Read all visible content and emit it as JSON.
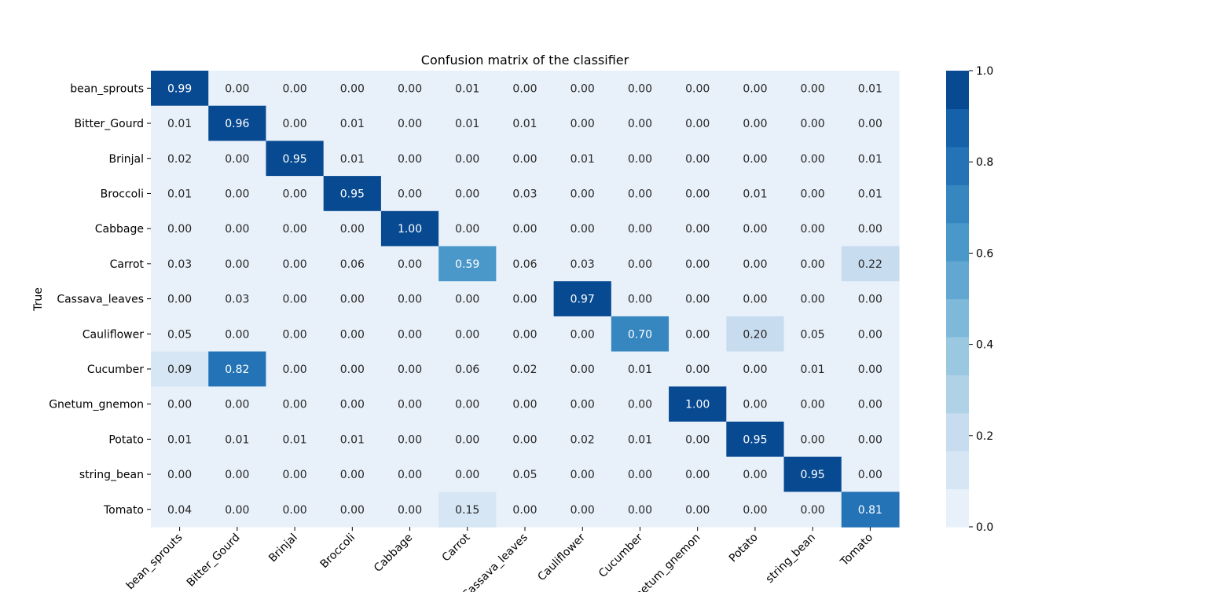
{
  "chart_data": {
    "type": "heatmap",
    "title": "Confusion matrix of the classifier",
    "xlabel": "",
    "ylabel": "True",
    "x_categories": [
      "bean_sprouts",
      "Bitter_Gourd",
      "Brinjal",
      "Broccoli",
      "Cabbage",
      "Carrot",
      "Cassava_leaves",
      "Cauliflower",
      "Cucumber",
      "Gnetum_gnemon",
      "Potato",
      "string_bean",
      "Tomato"
    ],
    "y_categories": [
      "bean_sprouts",
      "Bitter_Gourd",
      "Brinjal",
      "Broccoli",
      "Cabbage",
      "Carrot",
      "Cassava_leaves",
      "Cauliflower",
      "Cucumber",
      "Gnetum_gnemon",
      "Potato",
      "string_bean",
      "Tomato"
    ],
    "values": [
      [
        0.99,
        0.0,
        0.0,
        0.0,
        0.0,
        0.01,
        0.0,
        0.0,
        0.0,
        0.0,
        0.0,
        0.0,
        0.01
      ],
      [
        0.01,
        0.96,
        0.0,
        0.01,
        0.0,
        0.01,
        0.01,
        0.0,
        0.0,
        0.0,
        0.0,
        0.0,
        0.0
      ],
      [
        0.02,
        0.0,
        0.95,
        0.01,
        0.0,
        0.0,
        0.0,
        0.01,
        0.0,
        0.0,
        0.0,
        0.0,
        0.01
      ],
      [
        0.01,
        0.0,
        0.0,
        0.95,
        0.0,
        0.0,
        0.03,
        0.0,
        0.0,
        0.0,
        0.01,
        0.0,
        0.01
      ],
      [
        0.0,
        0.0,
        0.0,
        0.0,
        1.0,
        0.0,
        0.0,
        0.0,
        0.0,
        0.0,
        0.0,
        0.0,
        0.0
      ],
      [
        0.03,
        0.0,
        0.0,
        0.06,
        0.0,
        0.59,
        0.06,
        0.03,
        0.0,
        0.0,
        0.0,
        0.0,
        0.22
      ],
      [
        0.0,
        0.03,
        0.0,
        0.0,
        0.0,
        0.0,
        0.0,
        0.97,
        0.0,
        0.0,
        0.0,
        0.0,
        0.0
      ],
      [
        0.05,
        0.0,
        0.0,
        0.0,
        0.0,
        0.0,
        0.0,
        0.0,
        0.7,
        0.0,
        0.2,
        0.05,
        0.0
      ],
      [
        0.09,
        0.82,
        0.0,
        0.0,
        0.0,
        0.06,
        0.02,
        0.0,
        0.01,
        0.0,
        0.0,
        0.01,
        0.0
      ],
      [
        0.0,
        0.0,
        0.0,
        0.0,
        0.0,
        0.0,
        0.0,
        0.0,
        0.0,
        1.0,
        0.0,
        0.0,
        0.0
      ],
      [
        0.01,
        0.01,
        0.01,
        0.01,
        0.0,
        0.0,
        0.0,
        0.02,
        0.01,
        0.0,
        0.95,
        0.0,
        0.0
      ],
      [
        0.0,
        0.0,
        0.0,
        0.0,
        0.0,
        0.0,
        0.05,
        0.0,
        0.0,
        0.0,
        0.0,
        0.95,
        0.0
      ],
      [
        0.04,
        0.0,
        0.0,
        0.0,
        0.0,
        0.15,
        0.0,
        0.0,
        0.0,
        0.0,
        0.0,
        0.0,
        0.81
      ]
    ],
    "value_range": [
      0,
      1
    ],
    "colorbar": {
      "ticks": [
        0.0,
        0.2,
        0.4,
        0.6,
        0.8,
        1.0
      ],
      "tick_labels": [
        "0.0",
        "0.2",
        "0.4",
        "0.6",
        "0.8",
        "1.0"
      ],
      "bins": 12
    },
    "colormap": [
      "#e8f1fa",
      "#d6e6f4",
      "#c8dcf0",
      "#b0d2e7",
      "#9ac8e0",
      "#7fb9da",
      "#61a7d2",
      "#4a98c9",
      "#3686c0",
      "#2373b6",
      "#1662aa",
      "#084a92"
    ],
    "text_color_light": "#ffffff",
    "text_color_dark": "#262626",
    "grid": false
  }
}
